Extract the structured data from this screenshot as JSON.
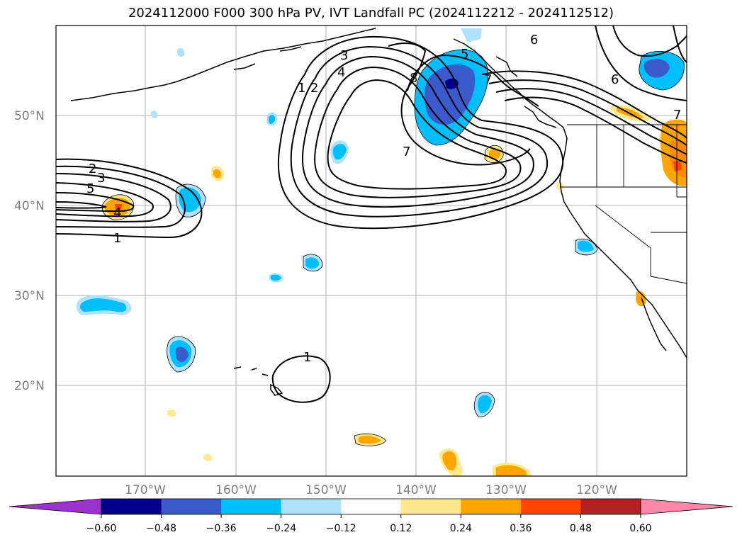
{
  "title": "2024112000 F000 300 hPa PV, IVT Landfall PC (2024112212 - 2024112512)",
  "lat_labels": [
    "50°N",
    "40°N",
    "30°N",
    "20°N"
  ],
  "lon_labels": [
    "170°W",
    "160°W",
    "150°W",
    "140°W",
    "130°W",
    "120°W"
  ],
  "colorbar": {
    "ticks": [
      "−0.60",
      "−0.48",
      "−0.36",
      "−0.24",
      "−0.12",
      "0.12",
      "0.24",
      "0.36",
      "0.48",
      "0.60"
    ],
    "colors": [
      "#9933cc",
      "#00008b",
      "#3b5bcc",
      "#00bfff",
      "#b0e2ff",
      "#ffffff",
      "#ffe98a",
      "#ffa500",
      "#ff4500",
      "#b22222",
      "#ff88aa"
    ]
  },
  "contour_labels": {
    "west_1": "1",
    "west_2": "2",
    "west_3": "3",
    "west_4": "4",
    "west_5": "5",
    "ridge_1": "1",
    "ridge_2": "2",
    "ridge_3": "3",
    "ridge_4": "4",
    "ridge_7": "7",
    "ridge_8": "8",
    "east_5": "5",
    "east_6": "6",
    "east_6b": "6",
    "east_7": "7",
    "east_7b": "7",
    "hawaii_1": "1"
  }
}
